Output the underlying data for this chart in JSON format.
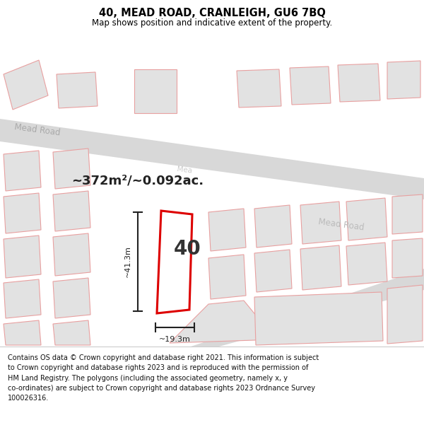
{
  "title": "40, MEAD ROAD, CRANLEIGH, GU6 7BQ",
  "subtitle": "Map shows position and indicative extent of the property.",
  "footer_line": "Contains OS data © Crown copyright and database right 2021. This information is subject to Crown copyright and database rights 2023 and is reproduced with the permission of HM Land Registry. The polygons (including the associated geometry, namely x, y co-ordinates) are subject to Crown copyright and database rights 2023 Ordnance Survey 100026316.",
  "area_label": "~372m²/~0.092ac.",
  "number_label": "40",
  "dim_vertical": "~41.3m",
  "dim_horizontal": "~19.3m",
  "road_label_left": "Mead Road",
  "road_label_right": "Mead Road",
  "road_label_mid": "Mea",
  "map_bg": "#f7f7f7",
  "footer_bg": "#ffffff",
  "road_fill": "#d8d8d8",
  "building_fill": "#e2e2e2",
  "building_stroke": "#e8a0a0",
  "highlight_stroke": "#dd0000",
  "highlight_fill": "#ffffff",
  "dim_color": "#222222",
  "title_color": "#000000",
  "footer_color": "#111111",
  "road_label_color": "#aaaaaa",
  "area_label_color": "#222222"
}
